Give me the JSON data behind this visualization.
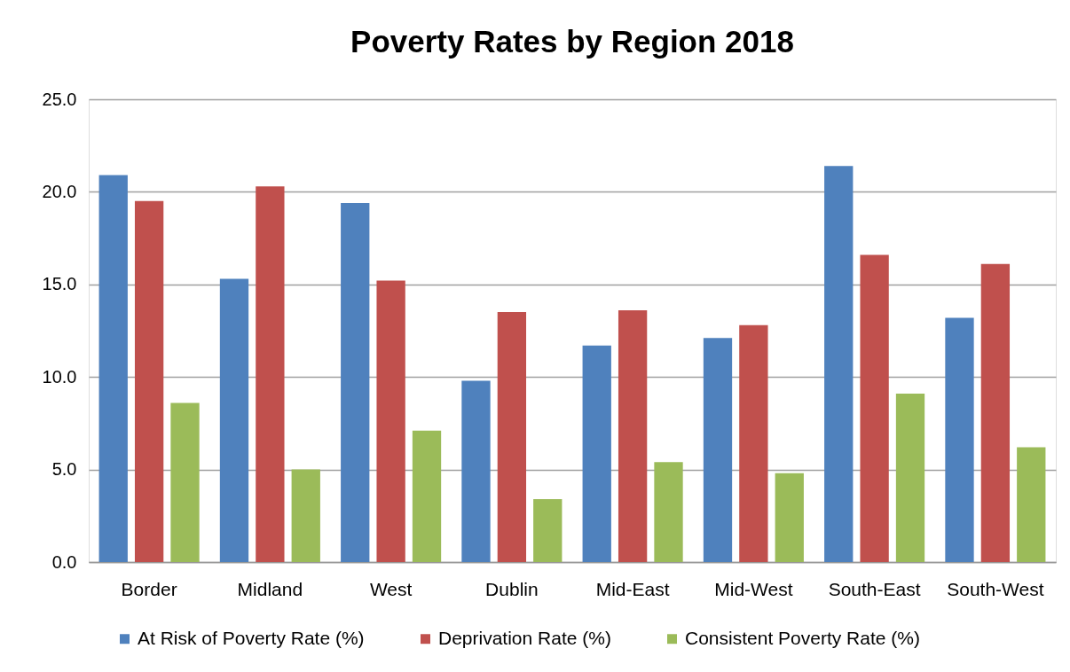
{
  "chart_data": {
    "type": "bar",
    "title": "Poverty Rates by Region 2018",
    "categories": [
      "Border",
      "Midland",
      "West",
      "Dublin",
      "Mid-East",
      "Mid-West",
      "South-East",
      "South-West"
    ],
    "series": [
      {
        "name": "At Risk of Poverty Rate (%)",
        "color": "#4f81bd",
        "values": [
          20.9,
          15.3,
          19.4,
          9.8,
          11.7,
          12.1,
          21.4,
          13.2
        ]
      },
      {
        "name": "Deprivation Rate (%)",
        "color": "#c0504d",
        "values": [
          19.5,
          20.3,
          15.2,
          13.5,
          13.6,
          12.8,
          16.6,
          16.1
        ]
      },
      {
        "name": "Consistent Poverty Rate (%)",
        "color": "#9bbb59",
        "values": [
          8.6,
          5.0,
          7.1,
          3.4,
          5.4,
          4.8,
          9.1,
          6.2
        ]
      }
    ],
    "ylim": [
      0,
      25
    ],
    "yticks": [
      {
        "value": 0,
        "label": "0.0"
      },
      {
        "value": 5,
        "label": "5.0"
      },
      {
        "value": 10,
        "label": "10.0"
      },
      {
        "value": 15,
        "label": "15.0"
      },
      {
        "value": 20,
        "label": "20.0"
      },
      {
        "value": 25,
        "label": "25.0"
      }
    ],
    "grid": "y",
    "legend": "bottom"
  }
}
